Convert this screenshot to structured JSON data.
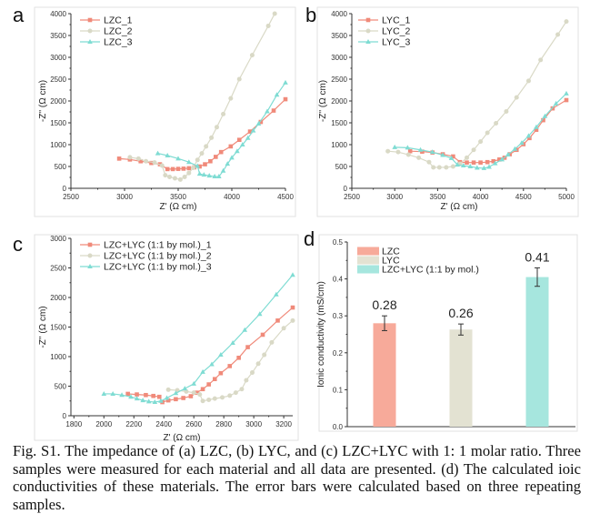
{
  "caption": "Fig. S1. The impedance of (a) LZC, (b) LYC, and (c) LZC+LYC with 1: 1 molar ratio. Three samples were measured for each material and all data are presented. (d) The calculated ioic conductivities of these materials. The error bars were calculated based on three repeating samples.",
  "colors": {
    "series1": "#f08a7a",
    "series2": "#d9d9c6",
    "series3": "#7fdcd3",
    "bar1": "#f7aa9a",
    "bar2": "#e3e2d2",
    "bar3": "#a6e6de"
  },
  "chart_data": [
    {
      "panel": "a",
      "type": "line",
      "xlabel": "Z' (Ω cm)",
      "ylabel": "-Z'' (Ω cm)",
      "xlim": [
        2500,
        4500
      ],
      "ylim": [
        0,
        4000
      ],
      "xticks": [
        2500,
        3000,
        3500,
        4000,
        4500
      ],
      "yticks": [
        0,
        500,
        1000,
        1500,
        2000,
        2500,
        3000,
        3500,
        4000
      ],
      "legend": "top-left",
      "series": [
        {
          "name": "LZC_1",
          "marker": "square",
          "points": [
            [
              2950,
              680
            ],
            [
              3050,
              660
            ],
            [
              3150,
              620
            ],
            [
              3250,
              580
            ],
            [
              3330,
              550
            ],
            [
              3400,
              440
            ],
            [
              3450,
              440
            ],
            [
              3500,
              445
            ],
            [
              3550,
              450
            ],
            [
              3600,
              460
            ],
            [
              3650,
              480
            ],
            [
              3700,
              500
            ],
            [
              3750,
              550
            ],
            [
              3800,
              620
            ],
            [
              3850,
              720
            ],
            [
              3900,
              830
            ],
            [
              3990,
              960
            ],
            [
              4070,
              1110
            ],
            [
              4170,
              1300
            ],
            [
              4270,
              1520
            ],
            [
              4390,
              1780
            ],
            [
              4500,
              2040
            ]
          ]
        },
        {
          "name": "LZC_2",
          "marker": "circle",
          "points": [
            [
              3050,
              710
            ],
            [
              3130,
              680
            ],
            [
              3200,
              620
            ],
            [
              3280,
              590
            ],
            [
              3350,
              520
            ],
            [
              3380,
              300
            ],
            [
              3420,
              260
            ],
            [
              3470,
              230
            ],
            [
              3520,
              200
            ],
            [
              3560,
              260
            ],
            [
              3600,
              350
            ],
            [
              3640,
              470
            ],
            [
              3680,
              650
            ],
            [
              3720,
              800
            ],
            [
              3760,
              960
            ],
            [
              3810,
              1160
            ],
            [
              3860,
              1400
            ],
            [
              3920,
              1700
            ],
            [
              3990,
              2060
            ],
            [
              4070,
              2500
            ],
            [
              4190,
              3050
            ],
            [
              4340,
              3720
            ],
            [
              4400,
              4000
            ]
          ]
        },
        {
          "name": "LZC_3",
          "marker": "triangle",
          "points": [
            [
              3310,
              800
            ],
            [
              3400,
              750
            ],
            [
              3500,
              680
            ],
            [
              3600,
              600
            ],
            [
              3680,
              510
            ],
            [
              3700,
              330
            ],
            [
              3740,
              310
            ],
            [
              3790,
              290
            ],
            [
              3840,
              270
            ],
            [
              3880,
              270
            ],
            [
              3920,
              400
            ],
            [
              3960,
              560
            ],
            [
              4000,
              700
            ],
            [
              4050,
              850
            ],
            [
              4100,
              1000
            ],
            [
              4150,
              1150
            ],
            [
              4200,
              1320
            ],
            [
              4250,
              1480
            ],
            [
              4330,
              1760
            ],
            [
              4420,
              2140
            ],
            [
              4500,
              2420
            ]
          ]
        }
      ]
    },
    {
      "panel": "b",
      "type": "line",
      "xlabel": "Z' (Ω cm)",
      "ylabel": "-Z'' (Ω cm)",
      "xlim": [
        2500,
        5000
      ],
      "ylim": [
        0,
        4000
      ],
      "xticks": [
        2500,
        3000,
        3500,
        4000,
        4500,
        5000
      ],
      "yticks": [
        0,
        500,
        1000,
        1500,
        2000,
        2500,
        3000,
        3500,
        4000
      ],
      "legend": "top-left",
      "series": [
        {
          "name": "LYC_1",
          "marker": "square",
          "points": [
            [
              3180,
              850
            ],
            [
              3320,
              840
            ],
            [
              3440,
              820
            ],
            [
              3560,
              780
            ],
            [
              3680,
              730
            ],
            [
              3760,
              600
            ],
            [
              3840,
              590
            ],
            [
              3920,
              590
            ],
            [
              4000,
              590
            ],
            [
              4080,
              600
            ],
            [
              4150,
              620
            ],
            [
              4220,
              660
            ],
            [
              4280,
              700
            ],
            [
              4340,
              780
            ],
            [
              4420,
              880
            ],
            [
              4500,
              1010
            ],
            [
              4570,
              1150
            ],
            [
              4650,
              1340
            ],
            [
              4730,
              1560
            ],
            [
              4840,
              1830
            ],
            [
              5000,
              2020
            ]
          ]
        },
        {
          "name": "LYC_2",
          "marker": "circle",
          "points": [
            [
              2920,
              850
            ],
            [
              3040,
              830
            ],
            [
              3160,
              770
            ],
            [
              3280,
              700
            ],
            [
              3400,
              600
            ],
            [
              3450,
              480
            ],
            [
              3520,
              480
            ],
            [
              3600,
              480
            ],
            [
              3680,
              500
            ],
            [
              3760,
              560
            ],
            [
              3840,
              700
            ],
            [
              3920,
              880
            ],
            [
              4000,
              1070
            ],
            [
              4080,
              1270
            ],
            [
              4180,
              1490
            ],
            [
              4300,
              1760
            ],
            [
              4420,
              2080
            ],
            [
              4560,
              2460
            ],
            [
              4700,
              2940
            ],
            [
              4900,
              3520
            ],
            [
              5000,
              3820
            ]
          ]
        },
        {
          "name": "LYC_3",
          "marker": "triangle",
          "points": [
            [
              3000,
              940
            ],
            [
              3150,
              930
            ],
            [
              3300,
              880
            ],
            [
              3440,
              830
            ],
            [
              3560,
              760
            ],
            [
              3660,
              690
            ],
            [
              3730,
              540
            ],
            [
              3800,
              520
            ],
            [
              3880,
              500
            ],
            [
              3960,
              470
            ],
            [
              4040,
              460
            ],
            [
              4100,
              490
            ],
            [
              4170,
              570
            ],
            [
              4250,
              660
            ],
            [
              4320,
              770
            ],
            [
              4400,
              900
            ],
            [
              4480,
              1040
            ],
            [
              4560,
              1200
            ],
            [
              4650,
              1400
            ],
            [
              4750,
              1650
            ],
            [
              4880,
              1940
            ],
            [
              5000,
              2170
            ]
          ]
        }
      ]
    },
    {
      "panel": "c",
      "type": "line",
      "xlabel": "Z' (Ω cm)",
      "ylabel": "-Z'' (Ω cm)",
      "xlim": [
        1780,
        3260
      ],
      "ylim": [
        0,
        3000
      ],
      "xticks": [
        1800,
        2000,
        2200,
        2400,
        2600,
        2800,
        3000,
        3200
      ],
      "yticks": [
        0,
        500,
        1000,
        1500,
        2000,
        2500,
        3000
      ],
      "legend": "top-left",
      "series": [
        {
          "name": "LZC+LYC (1:1 by mol.)_1",
          "marker": "square",
          "points": [
            [
              2160,
              370
            ],
            [
              2220,
              360
            ],
            [
              2280,
              350
            ],
            [
              2330,
              335
            ],
            [
              2370,
              320
            ],
            [
              2390,
              230
            ],
            [
              2430,
              260
            ],
            [
              2480,
              280
            ],
            [
              2530,
              300
            ],
            [
              2580,
              330
            ],
            [
              2620,
              390
            ],
            [
              2660,
              450
            ],
            [
              2700,
              530
            ],
            [
              2740,
              620
            ],
            [
              2780,
              720
            ],
            [
              2840,
              840
            ],
            [
              2900,
              980
            ],
            [
              2960,
              1160
            ],
            [
              3060,
              1370
            ],
            [
              3160,
              1610
            ],
            [
              3260,
              1830
            ]
          ]
        },
        {
          "name": "LZC+LYC (1:1 by mol.)_2",
          "marker": "circle",
          "points": [
            [
              2430,
              440
            ],
            [
              2490,
              430
            ],
            [
              2550,
              410
            ],
            [
              2600,
              390
            ],
            [
              2640,
              360
            ],
            [
              2660,
              250
            ],
            [
              2700,
              270
            ],
            [
              2740,
              290
            ],
            [
              2790,
              310
            ],
            [
              2840,
              340
            ],
            [
              2880,
              390
            ],
            [
              2920,
              450
            ],
            [
              2950,
              600
            ],
            [
              2990,
              730
            ],
            [
              3030,
              880
            ],
            [
              3070,
              1030
            ],
            [
              3120,
              1240
            ],
            [
              3200,
              1480
            ],
            [
              3260,
              1610
            ]
          ]
        },
        {
          "name": "LZC+LYC (1:1 by mol.)_3",
          "marker": "triangle",
          "points": [
            [
              2000,
              370
            ],
            [
              2060,
              370
            ],
            [
              2120,
              350
            ],
            [
              2180,
              320
            ],
            [
              2220,
              290
            ],
            [
              2260,
              260
            ],
            [
              2300,
              240
            ],
            [
              2340,
              230
            ],
            [
              2380,
              250
            ],
            [
              2420,
              300
            ],
            [
              2480,
              380
            ],
            [
              2540,
              460
            ],
            [
              2600,
              540
            ],
            [
              2660,
              740
            ],
            [
              2720,
              870
            ],
            [
              2780,
              1030
            ],
            [
              2860,
              1230
            ],
            [
              2940,
              1450
            ],
            [
              3040,
              1720
            ],
            [
              3150,
              2050
            ],
            [
              3260,
              2380
            ]
          ]
        }
      ]
    },
    {
      "panel": "d",
      "type": "bar",
      "xlabel": "",
      "ylabel": "Ionic conductivity (mS/cm)",
      "ylim": [
        0,
        0.5
      ],
      "yticks": [
        "0.0",
        "0.1",
        "0.2",
        "0.3",
        "0.4",
        "0.5"
      ],
      "legend": "top-left",
      "categories": [
        "LZC",
        "LYC",
        "LZC+LYC (1:1 by mol.)"
      ],
      "values": [
        0.28,
        0.263,
        0.405
      ],
      "errors": [
        0.02,
        0.015,
        0.025
      ],
      "value_labels": [
        "0.28",
        "0.26",
        "0.41"
      ]
    }
  ]
}
